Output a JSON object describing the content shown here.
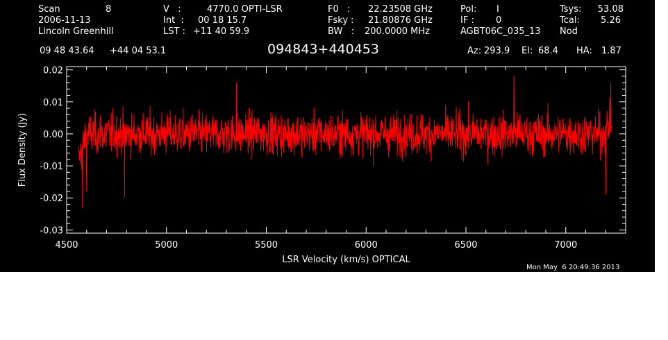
{
  "header": {
    "scan_label": "Scan",
    "scan_value": "8",
    "date": "2006-11-13",
    "observer": "Lincoln Greenhill",
    "v_label": "V   :",
    "v_value": "4770.0 OPTI-LSR",
    "int_label": "Int  :",
    "int_value": "00 18 15.7",
    "lst_label": "LST :",
    "lst_value": "+11 40 59.9",
    "f0_label": "F0   :",
    "f0_value": "22.23508 GHz",
    "fsky_label": "Fsky :",
    "fsky_value": "21.80876 GHz",
    "bw_label": "BW   :",
    "bw_value": "200.0000 MHz",
    "pol_label": "Pol:",
    "pol_value": "I",
    "if_label": "IF :",
    "if_value": "0",
    "project": "AGBT06C_035_13",
    "tsys_label": "Tsys:",
    "tsys_value": "53.08",
    "tcal_label": "Tcal:",
    "tcal_value": "5.26",
    "mode": "Nod",
    "ra": "09 48 43.64",
    "dec": "+44 04 53.1",
    "source": "094843+440453",
    "az_label": "Az:",
    "az_value": "293.9",
    "el_label": "El:",
    "el_value": "68.4",
    "ha_label": "HA:",
    "ha_value": "1.87",
    "timestamp": "Mon May  6 20:49:36 2013"
  },
  "chart_data": {
    "type": "line",
    "xlabel": "LSR Velocity (km/s) OPTICAL",
    "ylabel": "Flux Density (Jy)",
    "xlim": [
      4500,
      7300
    ],
    "ylim": [
      -0.031,
      0.021
    ],
    "xticks": [
      4500,
      5000,
      5500,
      6000,
      6500,
      7000
    ],
    "yticks": [
      -0.03,
      -0.02,
      -0.01,
      0.0,
      0.01,
      0.02
    ],
    "ytick_labels": [
      "-0.03",
      "-0.02",
      "-0.01",
      "0.00",
      "0.01",
      "0.02"
    ],
    "grid": false,
    "series": [
      {
        "color": "#ff0000",
        "x_start": 4560,
        "x_end": 7230,
        "noise_rms_jy": 0.0045,
        "mean_jy": 0.0,
        "features": [
          {
            "x": 4580,
            "y": -0.023
          },
          {
            "x": 4600,
            "y": -0.018
          },
          {
            "x": 4790,
            "y": -0.02
          },
          {
            "x": 5350,
            "y": 0.016
          },
          {
            "x": 6740,
            "y": 0.018
          },
          {
            "x": 7200,
            "y": -0.019
          },
          {
            "x": 7225,
            "y": 0.016
          }
        ]
      }
    ],
    "colors": {
      "background": "#000000",
      "axes": "#ffffff",
      "line": "#ff0000"
    }
  }
}
